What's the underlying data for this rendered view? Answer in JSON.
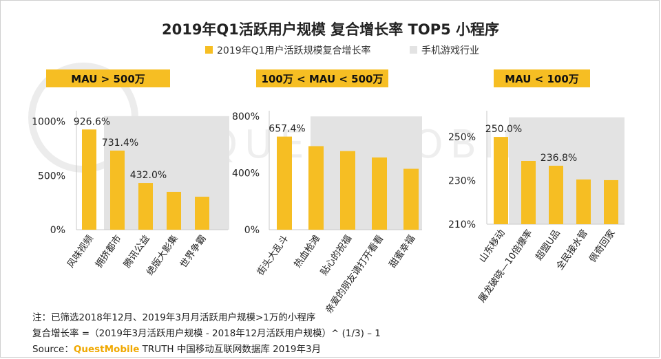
{
  "title": "2019年Q1活跃用户规模 复合增长率 TOP5 小程序",
  "legend": [
    {
      "label": "2019年Q1用户活跃规模复合增长率",
      "color": "#f6be23"
    },
    {
      "label": "手机游戏行业",
      "color": "#e3e3e3"
    }
  ],
  "watermark": "QUESTMOBILE",
  "colors": {
    "bar": "#f6be23",
    "background_band": "#e3e3e3",
    "axis": "#c8c8c8"
  },
  "chart_data": [
    {
      "type": "bar",
      "panel_label": "MAU > 500万",
      "categories": [
        "风味视频",
        "拥挤都市",
        "腾讯公益",
        "绝版大影集",
        "世界争霸"
      ],
      "values": [
        926.6,
        731.4,
        432.0,
        350.0,
        305.0
      ],
      "value_labels": [
        "926.6%",
        "731.4%",
        "432.0%",
        "",
        ""
      ],
      "background_band_value": 1050,
      "yticks": [
        0,
        500,
        1000
      ],
      "ytick_labels": [
        "0%",
        "500%",
        "1000%"
      ],
      "ylim": [
        0,
        1100
      ]
    },
    {
      "type": "bar",
      "panel_label": "100万 < MAU < 500万",
      "categories": [
        "街头大乱斗",
        "热血枪滩",
        "贴心的祝福",
        "亲爱的朋友请打开看看",
        "甜蜜幸福"
      ],
      "values": [
        657.4,
        590.0,
        555.0,
        510.0,
        430.0
      ],
      "value_labels": [
        "657.4%",
        "",
        "",
        "",
        ""
      ],
      "background_band_value": 800,
      "yticks": [
        0,
        400,
        800
      ],
      "ytick_labels": [
        "0%",
        "400%",
        "800%"
      ],
      "ylim": [
        0,
        840
      ]
    },
    {
      "type": "bar",
      "panel_label": "MAU < 100万",
      "categories": [
        "山东移动",
        "屠龙破晓—10倍爆率",
        "超盟U品",
        "全民接水管",
        "佩奇回家"
      ],
      "values": [
        250.0,
        239.0,
        236.8,
        230.5,
        230.2
      ],
      "value_labels": [
        "250.0%",
        "",
        "236.8%",
        "",
        ""
      ],
      "background_band_value": 259,
      "yticks": [
        210,
        230,
        250
      ],
      "ytick_labels": [
        "210%",
        "230%",
        "250%"
      ],
      "ylim": [
        210,
        262
      ]
    }
  ],
  "notes": {
    "line1": "注：已筛选2018年12月、2019年3月月活跃用户规模>1万的小程序",
    "line2": "复合增长率 =（2019年3月活跃用户规模 - 2018年12月活跃用户规模）^ (1/3) – 1",
    "source_prefix": "Source：",
    "source_brand": "QuestMobile",
    "source_suffix": " TRUTH 中国移动互联网数据库 2019年3月"
  }
}
